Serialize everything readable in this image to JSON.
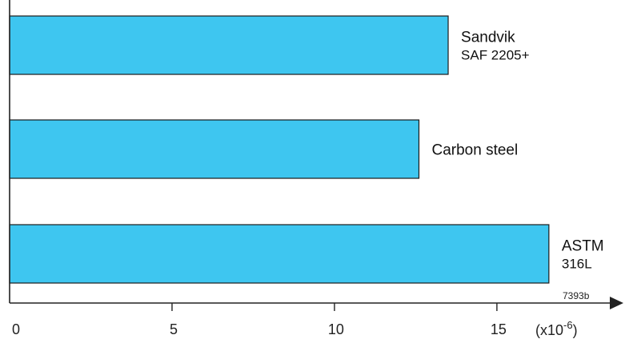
{
  "chart_data": {
    "type": "bar",
    "orientation": "horizontal",
    "categories": [
      "Sandvik SAF 2205+",
      "Carbon steel",
      "ASTM 316L"
    ],
    "label_lines": [
      [
        "Sandvik",
        "SAF 2205+"
      ],
      [
        "Carbon steel"
      ],
      [
        "ASTM",
        "316L"
      ]
    ],
    "values": [
      13.5,
      12.6,
      16.6
    ],
    "xlim": [
      0,
      18.5
    ],
    "x_ticks": [
      0,
      5,
      10,
      15
    ],
    "x_tick_labels": [
      "0",
      "5",
      "10",
      "15"
    ],
    "x_unit_base": "(x10",
    "x_unit_exp": "-6",
    "x_unit_close": ")",
    "figure_code": "7393b",
    "grid": false,
    "legend": "none",
    "bar_color": "#3ec6f0"
  }
}
